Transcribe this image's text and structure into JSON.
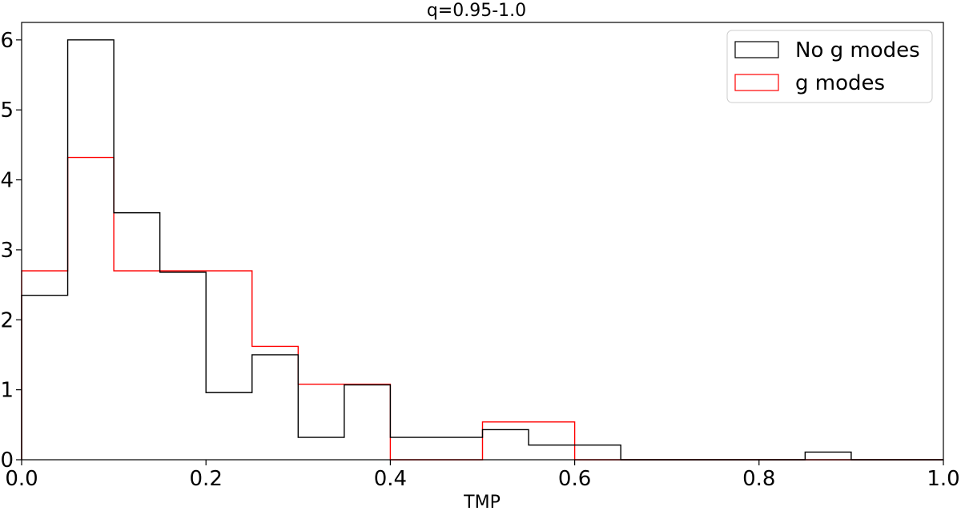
{
  "chart_data": {
    "type": "histogram",
    "title": "q=0.95-1.0",
    "xlabel": "TMP",
    "ylabel": "",
    "xlim": [
      0.0,
      1.0
    ],
    "ylim": [
      0,
      6.25
    ],
    "xticks": [
      "0.0",
      "0.2",
      "0.4",
      "0.6",
      "0.8",
      "1.0"
    ],
    "yticks": [
      "0",
      "1",
      "2",
      "3",
      "4",
      "5",
      "6"
    ],
    "grid": false,
    "legend_position": "top-right",
    "bin_edges": [
      0.0,
      0.05,
      0.1,
      0.15,
      0.2,
      0.25,
      0.3,
      0.35,
      0.4,
      0.45,
      0.5,
      0.55,
      0.6,
      0.65,
      0.7,
      0.75,
      0.8,
      0.85,
      0.9,
      0.95,
      1.0
    ],
    "series": [
      {
        "name": "No g modes",
        "color": "#000000",
        "values": [
          2.35,
          6.0,
          3.53,
          2.68,
          0.96,
          1.5,
          0.32,
          1.07,
          0.32,
          0.32,
          0.43,
          0.21,
          0.21,
          0.0,
          0.0,
          0.0,
          0.0,
          0.11,
          0.0,
          0.0
        ]
      },
      {
        "name": "g modes",
        "color": "#ff0000",
        "values": [
          2.7,
          4.32,
          2.7,
          2.7,
          2.7,
          1.62,
          1.08,
          1.08,
          0.0,
          0.0,
          0.54,
          0.54,
          0.0,
          0.0,
          0.0,
          0.0,
          0.0,
          0.0,
          0.0,
          0.0
        ]
      }
    ]
  }
}
